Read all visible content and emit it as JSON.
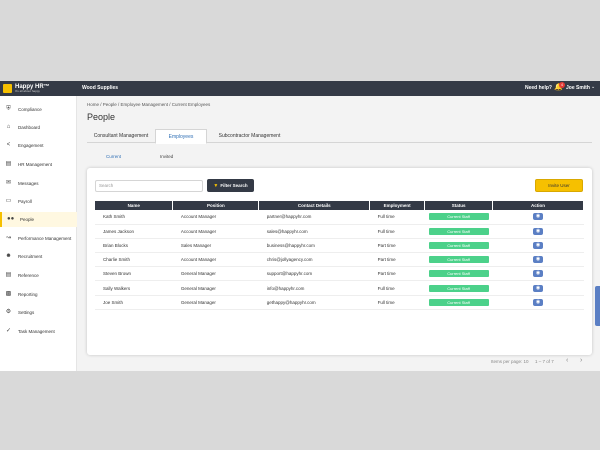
{
  "topbar": {
    "logo_title": "Happy HR™",
    "logo_sub": "It's all about happy",
    "company": "Wood Supplies",
    "help": "Need help?",
    "notifications": "4",
    "user": "Joe Smith"
  },
  "sidebar": {
    "items": [
      {
        "label": "Compliance",
        "icon": "shield-icon"
      },
      {
        "label": "Dashboard",
        "icon": "home-icon"
      },
      {
        "label": "Engagement",
        "icon": "share-icon"
      },
      {
        "label": "HR Management",
        "icon": "id-card-icon"
      },
      {
        "label": "Messages",
        "icon": "envelope-icon"
      },
      {
        "label": "Payroll",
        "icon": "document-icon"
      },
      {
        "label": "People",
        "icon": "people-icon"
      },
      {
        "label": "Performance Management",
        "icon": "trend-icon"
      },
      {
        "label": "Recruitment",
        "icon": "user-plus-icon"
      },
      {
        "label": "Reference",
        "icon": "book-icon"
      },
      {
        "label": "Reporting",
        "icon": "chart-icon"
      },
      {
        "label": "Settings",
        "icon": "gear-icon"
      },
      {
        "label": "Task Management",
        "icon": "check-circle-icon"
      }
    ],
    "active": "People"
  },
  "breadcrumb": "Home / People / Employee Management / Current Employees",
  "page_title": "People",
  "tabs": [
    "Consultant Management",
    "Employees",
    "Subcontractor Management"
  ],
  "subtabs": [
    "Current",
    "Invited"
  ],
  "search": {
    "placeholder": "Search"
  },
  "filter_label": "Filter Search",
  "invite_label": "Invite User",
  "table": {
    "headers": [
      "Name",
      "Position",
      "Contact Details",
      "Employment",
      "Status",
      "Action"
    ],
    "rows": [
      {
        "name": "Kath Smith",
        "position": "Account Manager",
        "contact": "partner@happyhr.com",
        "employment": "Full time",
        "status": "Current Staff"
      },
      {
        "name": "James Jackson",
        "position": "Account Manager",
        "contact": "sales@happyhr.com",
        "employment": "Full time",
        "status": "Current Staff"
      },
      {
        "name": "Brian Blocks",
        "position": "Sales Manager",
        "contact": "business@happyhr.com",
        "employment": "Part time",
        "status": "Current Staff"
      },
      {
        "name": "Charlie Smith",
        "position": "Account Manager",
        "contact": "chris@jollyagency.com",
        "employment": "Part time",
        "status": "Current Staff"
      },
      {
        "name": "Steven Brown",
        "position": "General Manager",
        "contact": "support@happyhr.com",
        "employment": "Part time",
        "status": "Current Staff"
      },
      {
        "name": "Sally Walkers",
        "position": "General Manager",
        "contact": "info@happyhr.com",
        "employment": "Full time",
        "status": "Current Staff"
      },
      {
        "name": "Joe Smith",
        "position": "General Manager",
        "contact": "gethappy@happyhr.com",
        "employment": "Full time",
        "status": "Current Staff"
      }
    ]
  },
  "pager": {
    "items_per_page": "Items per page: 10",
    "range": "1 – 7 of 7",
    "prev": "‹",
    "next": "›"
  }
}
